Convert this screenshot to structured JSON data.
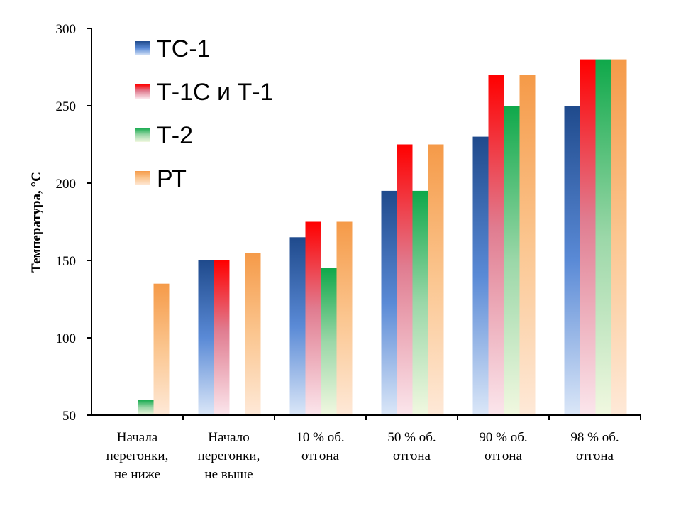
{
  "chart_data": {
    "type": "bar",
    "title": "",
    "xlabel": "",
    "ylabel": "Температура, °С",
    "ylim": [
      50,
      300
    ],
    "yticks": [
      50,
      100,
      150,
      200,
      250,
      300
    ],
    "grid": false,
    "legend_position": "top-left",
    "categories": [
      [
        "Начала",
        "перегонки,",
        "не ниже"
      ],
      [
        "Начало",
        "перегонки,",
        "не выше"
      ],
      [
        "10 % об.",
        "отгона"
      ],
      [
        "50 % об.",
        "отгона"
      ],
      [
        "90 % об.",
        "отгона"
      ],
      [
        "98 % об.",
        "отгона"
      ]
    ],
    "series": [
      {
        "name": "ТС-1",
        "color": "#2e5fa8",
        "values": [
          null,
          150,
          165,
          195,
          230,
          250
        ]
      },
      {
        "name": "Т-1С и Т-1",
        "color": "#ff1a1a",
        "values": [
          null,
          150,
          175,
          225,
          270,
          280
        ]
      },
      {
        "name": "Т-2",
        "color": "#1db050",
        "values": [
          60,
          null,
          145,
          195,
          250,
          280
        ]
      },
      {
        "name": "РТ",
        "color": "#f5a050",
        "values": [
          135,
          155,
          175,
          225,
          270,
          280
        ]
      }
    ]
  }
}
